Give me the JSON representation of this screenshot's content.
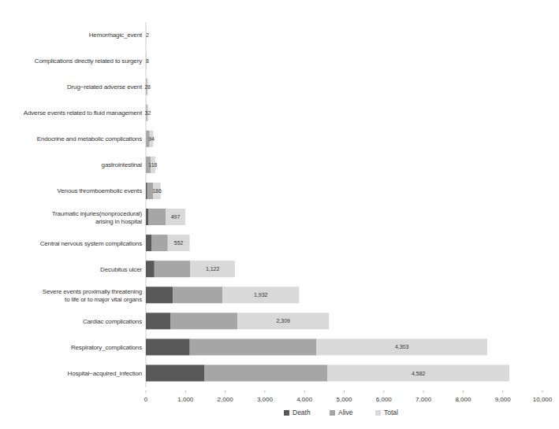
{
  "chart_data": {
    "type": "bar",
    "orientation": "horizontal",
    "stacked": true,
    "grid": false,
    "legend": "bottom",
    "categories": [
      "Hemorrhagic_event",
      "Complications directly related to surgery",
      "Drug−related adverse event",
      "Adverse events related to fluid management",
      "Endocrine and metabolic complications",
      "gastrointestinal",
      "Venous thromboembolic events",
      "Traumatic injuries(nonprocedural)\narising in hospital",
      "Central nervous system complications",
      "Decubitus ulcer",
      "Severe events proximally threatening\nto life or to major vital organs",
      "Cardiac complications",
      "Respiratory_complications",
      "Hospital−acquired_infection"
    ],
    "series": [
      {
        "name": "Death",
        "color": "#595959",
        "values": [
          0,
          1,
          2,
          2,
          5,
          10,
          35,
          70,
          140,
          215,
          680,
          625,
          1107,
          1480
        ]
      },
      {
        "name": "Alive",
        "color": "#a6a6a6",
        "values": [
          2,
          7,
          26,
          30,
          89,
          108,
          151,
          427,
          412,
          907,
          1252,
          1684,
          3196,
          3102
        ]
      },
      {
        "name": "Total",
        "color": "#d9d9d9",
        "data_labels": true,
        "values": [
          2,
          8,
          28,
          32,
          94,
          118,
          186,
          497,
          552,
          1122,
          1932,
          2309,
          4303,
          4582
        ],
        "value_labels": [
          "2",
          "8",
          "28",
          "32",
          "94",
          "118",
          "186",
          "497",
          "552",
          "1,122",
          "1,932",
          "2,309",
          "4,303",
          "4,582"
        ]
      }
    ],
    "xlim": [
      0,
      10000
    ],
    "xticks": [
      0,
      {
        "value": 1000,
        "label": "1,000"
      },
      {
        "value": 2000,
        "label": "2,000"
      },
      {
        "value": 3000,
        "label": "3,000"
      },
      {
        "value": 4000,
        "label": "4,000"
      },
      {
        "value": 5000,
        "label": "5,000"
      },
      {
        "value": 6000,
        "label": "6,000"
      },
      {
        "value": 7000,
        "label": "7,000"
      },
      {
        "value": 8000,
        "label": "8,000"
      },
      {
        "value": 9000,
        "label": "9,000"
      },
      {
        "value": 10000,
        "label": "10,000"
      }
    ]
  }
}
